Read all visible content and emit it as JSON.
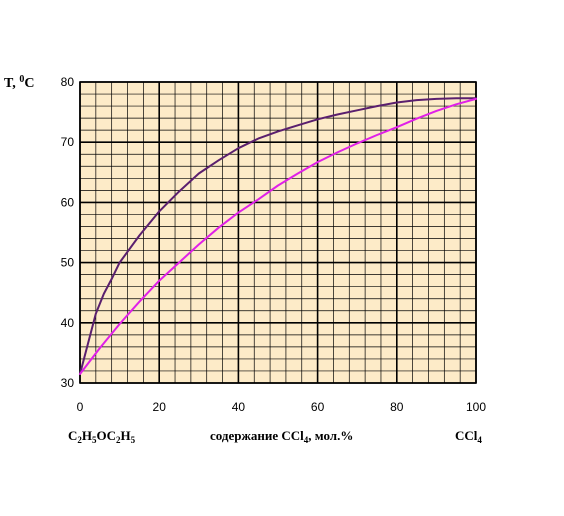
{
  "chart_data": {
    "type": "line",
    "ylabel": {
      "text": "T, ",
      "sup": "0",
      "unit": "C"
    },
    "xlim": [
      0,
      100
    ],
    "ylim": [
      30,
      80
    ],
    "x_ticks": [
      0,
      20,
      40,
      60,
      80,
      100
    ],
    "y_ticks": [
      30,
      40,
      50,
      60,
      70,
      80
    ],
    "grid": true,
    "background_color": "#fdebc8",
    "grid_color": "#000000",
    "series": [
      {
        "color": "#5a1f6e",
        "x": [
          0,
          2,
          4,
          6,
          8,
          10,
          15,
          20,
          25,
          30,
          35,
          40,
          45,
          50,
          55,
          60,
          65,
          70,
          75,
          80,
          85,
          90,
          95,
          100
        ],
        "y": [
          31.5,
          36.5,
          41.5,
          44.8,
          47.3,
          50.0,
          54.5,
          58.5,
          61.8,
          64.8,
          67.0,
          69.0,
          70.6,
          71.8,
          72.8,
          73.8,
          74.6,
          75.3,
          76.0,
          76.6,
          77.0,
          77.2,
          77.3,
          77.3
        ]
      },
      {
        "color": "#e020e8",
        "x": [
          0,
          5,
          10,
          15,
          20,
          25,
          30,
          35,
          40,
          45,
          50,
          55,
          60,
          65,
          70,
          75,
          80,
          85,
          90,
          95,
          100
        ],
        "y": [
          31.5,
          35.8,
          39.8,
          43.5,
          47.0,
          50.0,
          53.0,
          55.8,
          58.3,
          60.5,
          62.8,
          64.8,
          66.7,
          68.3,
          69.8,
          71.2,
          72.5,
          73.9,
          75.2,
          76.3,
          77.2
        ]
      }
    ]
  },
  "labels": {
    "left": {
      "parts": [
        "C",
        "2",
        "H",
        "5",
        "OC",
        "2",
        "H",
        "5"
      ]
    },
    "center": {
      "text": "содержание CCl",
      "sub": "4",
      "suffix": ", мол.%"
    },
    "right": {
      "text": "CCl",
      "sub": "4"
    }
  }
}
